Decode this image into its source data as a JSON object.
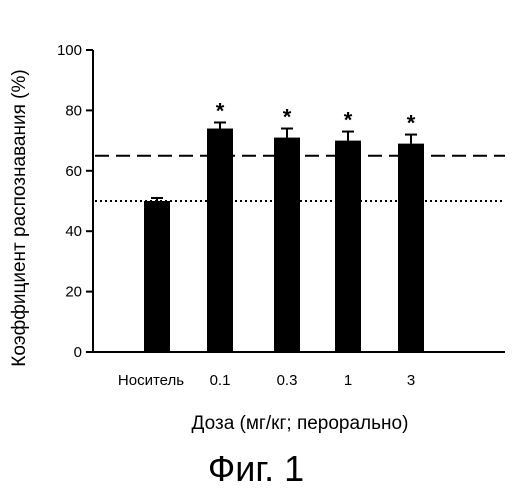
{
  "chart_data": {
    "type": "bar",
    "categories": [
      "Носитель",
      "0.1",
      "0.3",
      "1",
      "3"
    ],
    "values": [
      50,
      74,
      71,
      70,
      69
    ],
    "errors": [
      1,
      2,
      3,
      3,
      3
    ],
    "significance": [
      "",
      "*",
      "*",
      "*",
      "*"
    ],
    "xlabel": "Доза (мг/кг; перорально)",
    "ylabel": "Коэффициент распознавания (%)",
    "ylim": [
      0,
      100
    ],
    "yticks": [
      0,
      20,
      40,
      60,
      80,
      100
    ],
    "reference_lines": [
      {
        "value": 65,
        "style": "dashed"
      },
      {
        "value": 50,
        "style": "dotted"
      }
    ],
    "bar_color": "#000000",
    "grid": false
  },
  "figure_caption": "Фиг. 1"
}
